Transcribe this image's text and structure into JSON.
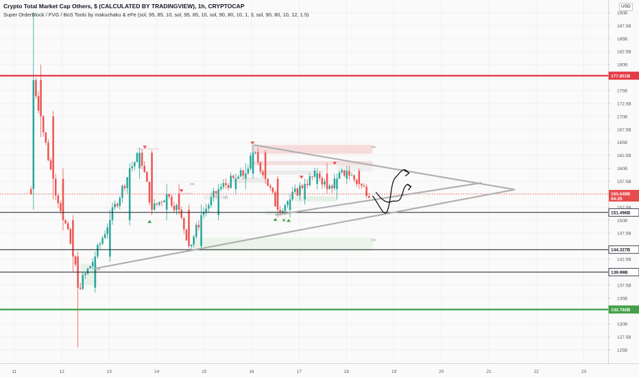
{
  "header": {
    "title": "Crypto Total Market Cap Others, $ (CALCULATED BY TRADINGVIEW), 1h, CRYPTOCAP",
    "indicator": "Super OrderBlock / FVG / BoS Tools by makuchaku & eFe (sol, 95, 85, 10, sol, 95, 85, 10, sol, 90, 80, 10, 1, 3, sol, 90, 80, 10, 12, 1.5)"
  },
  "currency_badge": "USD",
  "colors": {
    "background": "#fafafa",
    "grid": "#f0f0f0",
    "candle_up": "#26a69a",
    "candle_down": "#ef5350",
    "resistance_red": "#e53945",
    "support_green": "#43a047",
    "trendline": "#b0b0b0",
    "current_price": "#e84b4b",
    "hline_black": "#131722"
  },
  "chart_data": {
    "type": "candlestick",
    "title": "Crypto Total Market Cap Others, $ (CALCULATED BY TRADINGVIEW), 1h, CRYPTOCAP",
    "y_unit": "B",
    "ylim": [
      125,
      190
    ],
    "y_ticks": [
      {
        "value": 190,
        "label": "190B"
      },
      {
        "value": 187.5,
        "label": "187.5B"
      },
      {
        "value": 185,
        "label": "185B"
      },
      {
        "value": 182.5,
        "label": "182.5B"
      },
      {
        "value": 180,
        "label": "180B"
      },
      {
        "value": 175,
        "label": "175B"
      },
      {
        "value": 172.5,
        "label": "172.5B"
      },
      {
        "value": 170,
        "label": "170B"
      },
      {
        "value": 167.5,
        "label": "167.5B"
      },
      {
        "value": 165,
        "label": "165B"
      },
      {
        "value": 162.5,
        "label": "162.5B"
      },
      {
        "value": 160,
        "label": "160B"
      },
      {
        "value": 157.5,
        "label": "157.5B"
      },
      {
        "value": 152.5,
        "label": "152.5B"
      },
      {
        "value": 150,
        "label": "150B"
      },
      {
        "value": 147.5,
        "label": "147.5B"
      },
      {
        "value": 142.5,
        "label": "142.5B"
      },
      {
        "value": 137.5,
        "label": "137.5B"
      },
      {
        "value": 135,
        "label": "135B"
      },
      {
        "value": 130,
        "label": "130B"
      },
      {
        "value": 127.5,
        "label": "127.5B"
      },
      {
        "value": 125,
        "label": "125B"
      }
    ],
    "x_ticks": [
      {
        "day": 11,
        "label": "11"
      },
      {
        "day": 12,
        "label": "12"
      },
      {
        "day": 13,
        "label": "13"
      },
      {
        "day": 14,
        "label": "14"
      },
      {
        "day": 15,
        "label": "15"
      },
      {
        "day": 16,
        "label": "16"
      },
      {
        "day": 17,
        "label": "17"
      },
      {
        "day": 18,
        "label": "18"
      },
      {
        "day": 19,
        "label": "19"
      },
      {
        "day": 20,
        "label": "20"
      },
      {
        "day": 21,
        "label": "21"
      },
      {
        "day": 22,
        "label": "22"
      },
      {
        "day": 23,
        "label": "23"
      }
    ],
    "horizontal_levels": [
      {
        "value": 177.851,
        "label": "177.851B",
        "style": "resistance"
      },
      {
        "value": 151.496,
        "label": "151.496B",
        "style": "black"
      },
      {
        "value": 144.327,
        "label": "144.327B",
        "style": "black"
      },
      {
        "value": 139.99,
        "label": "139.99B",
        "style": "black"
      },
      {
        "value": 132.792,
        "label": "132.792B",
        "style": "support"
      }
    ],
    "current_price": {
      "value": 155.049,
      "label": "155.049B",
      "countdown": "04:25"
    },
    "trendlines": [
      {
        "from": [
          16.05,
          164.5
        ],
        "to": [
          21.55,
          155.9
        ]
      },
      {
        "from": [
          12.7,
          140.7
        ],
        "to": [
          21.55,
          155.9
        ]
      },
      {
        "from": [
          16.5,
          151.0
        ],
        "to": [
          20.85,
          157.2
        ]
      }
    ],
    "ob_labels": [
      {
        "day": 12.72,
        "value": 140.3,
        "text": "OB"
      },
      {
        "day": 18.52,
        "value": 146.0,
        "text": "OB"
      },
      {
        "day": 18.52,
        "value": 163.9,
        "text": "OB"
      },
      {
        "day": 14.7,
        "value": 156.8,
        "text": "OB"
      },
      {
        "day": 15.4,
        "value": 154.2,
        "text": "OB"
      }
    ],
    "anchors": [
      {
        "day": 11.4,
        "open": 156,
        "high": 190,
        "low": 152,
        "close": 177
      },
      {
        "day": 11.55,
        "open": 177,
        "high": 180,
        "low": 166,
        "close": 170
      },
      {
        "day": 11.8,
        "open": 170,
        "high": 171,
        "low": 154,
        "close": 158
      },
      {
        "day": 12.05,
        "open": 158,
        "high": 160,
        "low": 148,
        "close": 150
      },
      {
        "day": 12.25,
        "open": 150,
        "high": 151,
        "low": 140,
        "close": 143
      },
      {
        "day": 12.35,
        "open": 143,
        "high": 144,
        "low": 125.5,
        "close": 137
      },
      {
        "day": 12.7,
        "open": 137,
        "high": 144,
        "low": 136,
        "close": 143
      },
      {
        "day": 13.0,
        "open": 143,
        "high": 152,
        "low": 142,
        "close": 150
      },
      {
        "day": 13.45,
        "open": 150,
        "high": 161,
        "low": 149,
        "close": 160
      },
      {
        "day": 13.65,
        "open": 160,
        "high": 164,
        "low": 158,
        "close": 163
      },
      {
        "day": 13.9,
        "open": 163,
        "high": 163.5,
        "low": 151,
        "close": 152
      },
      {
        "day": 14.2,
        "open": 152,
        "high": 157,
        "low": 150,
        "close": 155
      },
      {
        "day": 14.45,
        "open": 155,
        "high": 157,
        "low": 151,
        "close": 152
      },
      {
        "day": 14.7,
        "open": 152,
        "high": 153,
        "low": 144.5,
        "close": 145
      },
      {
        "day": 14.95,
        "open": 145,
        "high": 153,
        "low": 144.5,
        "close": 151
      },
      {
        "day": 15.3,
        "open": 151,
        "high": 157,
        "low": 150,
        "close": 156
      },
      {
        "day": 15.65,
        "open": 156,
        "high": 159,
        "low": 155,
        "close": 158
      },
      {
        "day": 15.85,
        "open": 158,
        "high": 161,
        "low": 156,
        "close": 159
      },
      {
        "day": 16.05,
        "open": 159,
        "high": 164.5,
        "low": 158,
        "close": 163
      },
      {
        "day": 16.3,
        "open": 163,
        "high": 163.5,
        "low": 157,
        "close": 158
      },
      {
        "day": 16.55,
        "open": 158,
        "high": 158.5,
        "low": 150.5,
        "close": 152
      },
      {
        "day": 16.8,
        "open": 152,
        "high": 155,
        "low": 150.5,
        "close": 154
      },
      {
        "day": 17.1,
        "open": 154,
        "high": 158,
        "low": 153,
        "close": 157
      },
      {
        "day": 17.4,
        "open": 157,
        "high": 160,
        "low": 156,
        "close": 159
      },
      {
        "day": 17.6,
        "open": 159,
        "high": 161,
        "low": 155,
        "close": 156
      },
      {
        "day": 17.8,
        "open": 156,
        "high": 159,
        "low": 154,
        "close": 158
      },
      {
        "day": 18.0,
        "open": 158,
        "high": 160.5,
        "low": 157,
        "close": 159.5
      },
      {
        "day": 18.25,
        "open": 159.5,
        "high": 160,
        "low": 156,
        "close": 157
      },
      {
        "day": 18.52,
        "open": 157,
        "high": 157.5,
        "low": 155,
        "close": 155.05
      }
    ]
  }
}
